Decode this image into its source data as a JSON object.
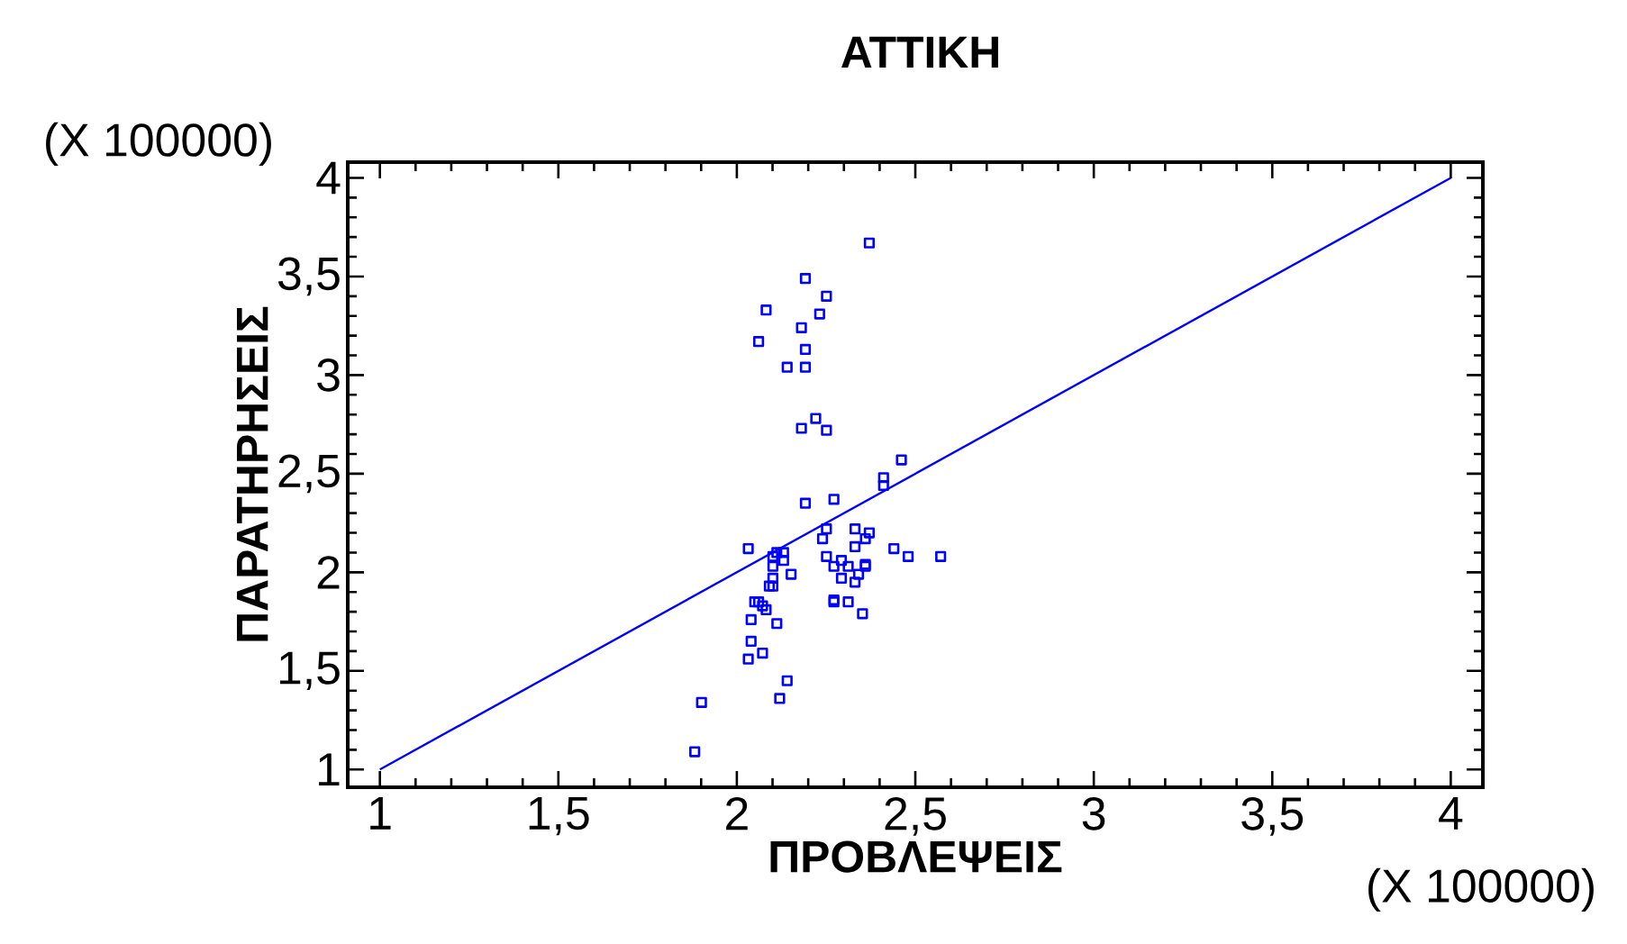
{
  "chart_data": {
    "type": "scatter",
    "title": "ΑΤΤΙΚΗ",
    "xlabel": "ΠΡΟΒΛΕΨΕΙΣ",
    "ylabel": "ΠΑΡΑΤΗΡΗΣΕΙΣ",
    "annotations": [
      "(X 100000)",
      "(X 100000)"
    ],
    "xlim": [
      0.91,
      4.09
    ],
    "ylim": [
      0.91,
      4.08
    ],
    "xticks": [
      1,
      {
        "value": 1.5,
        "label": "1,5"
      },
      2,
      {
        "value": 2.5,
        "label": "2,5"
      },
      3,
      {
        "value": 3.5,
        "label": "3,5"
      },
      4
    ],
    "yticks": [
      1,
      {
        "value": 1.5,
        "label": "1,5"
      },
      2,
      {
        "value": 2.5,
        "label": "2,5"
      },
      3,
      {
        "value": 3.5,
        "label": "3,5"
      },
      4
    ],
    "marker": "square",
    "series": [
      {
        "color": "#0000ff",
        "x": [
          2.371,
          2.192,
          2.251,
          2.082,
          2.232,
          2.181,
          2.061,
          2.192,
          2.141,
          2.192,
          2.221,
          2.181,
          2.251,
          2.461,
          2.411,
          2.411,
          2.192,
          2.272,
          2.251,
          2.24,
          2.331,
          2.371,
          2.36,
          2.331,
          2.032,
          2.44,
          2.48,
          2.571,
          2.131,
          2.131,
          2.101,
          2.112,
          2.101,
          2.101,
          2.152,
          2.251,
          2.293,
          2.272,
          2.312,
          2.293,
          2.331,
          2.341,
          2.36,
          2.36,
          2.091,
          2.101,
          2.05,
          2.061,
          2.072,
          2.082,
          2.04,
          2.112,
          2.272,
          2.272,
          2.312,
          2.352,
          2.04,
          2.072,
          2.032,
          2.141,
          2.12,
          1.901,
          1.882
        ],
        "values": [
          3.67,
          3.49,
          3.4,
          3.33,
          3.31,
          3.24,
          3.17,
          3.13,
          3.04,
          3.04,
          2.78,
          2.73,
          2.72,
          2.57,
          2.48,
          2.44,
          2.35,
          2.37,
          2.22,
          2.17,
          2.22,
          2.2,
          2.17,
          2.13,
          2.12,
          2.12,
          2.08,
          2.08,
          2.1,
          2.06,
          2.08,
          2.1,
          2.03,
          1.97,
          1.99,
          2.08,
          2.06,
          2.03,
          2.03,
          1.97,
          1.95,
          1.99,
          2.03,
          2.04,
          1.93,
          1.93,
          1.85,
          1.85,
          1.83,
          1.81,
          1.76,
          1.74,
          1.86,
          1.85,
          1.85,
          1.79,
          1.65,
          1.59,
          1.56,
          1.45,
          1.36,
          1.34,
          1.09
        ]
      },
      {
        "type": "line",
        "marker": "none",
        "color": "#0000ff",
        "x": [
          1,
          4
        ],
        "values": [
          1,
          4
        ]
      }
    ]
  }
}
